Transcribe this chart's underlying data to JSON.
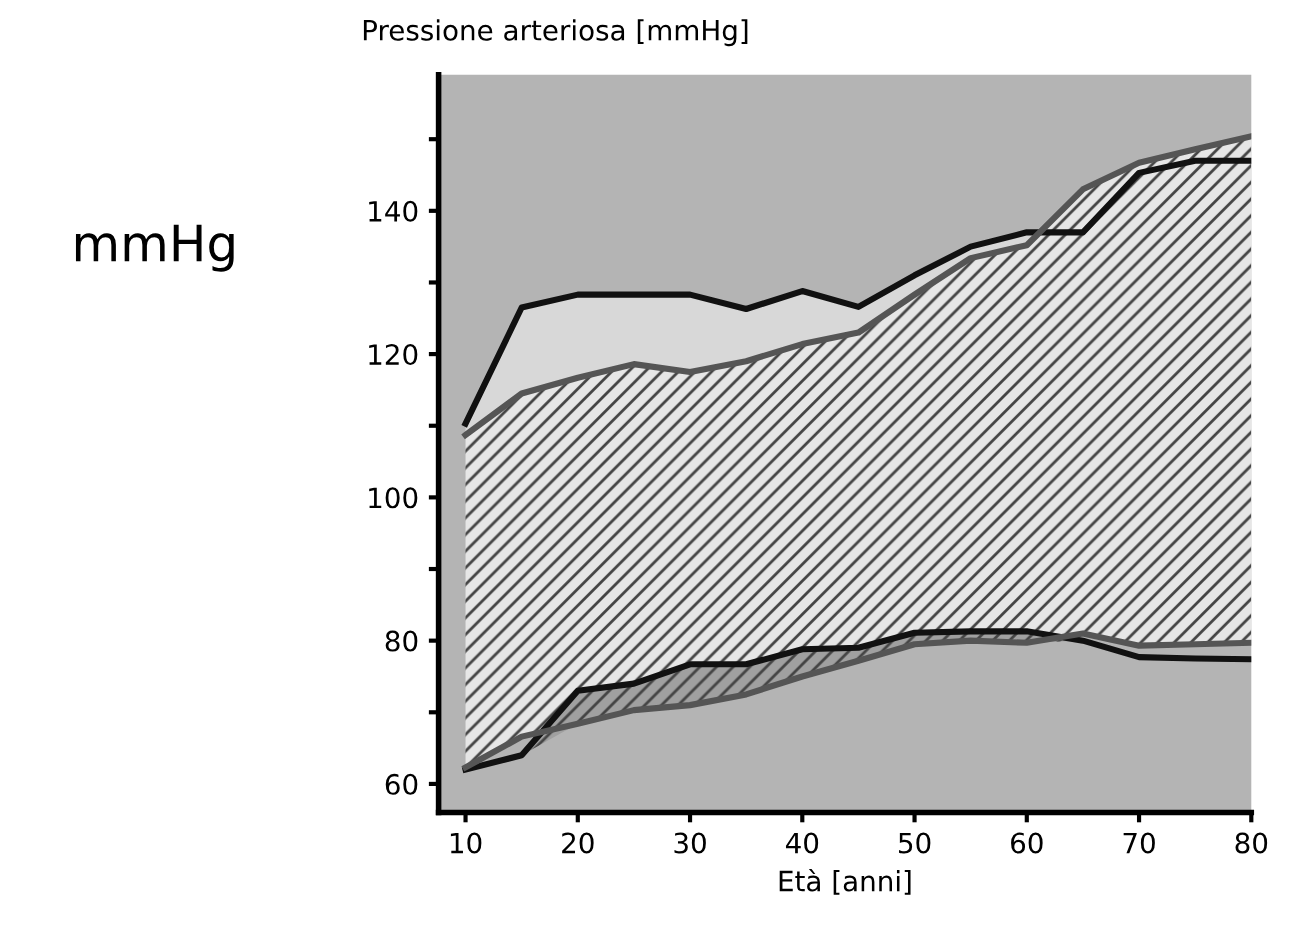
{
  "chart_data": {
    "type": "line",
    "title": "Pressione arteriosa [mmHg]",
    "xlabel": "Età [anni]",
    "annotations": [
      "mmHg"
    ],
    "x": [
      10,
      15,
      20,
      25,
      30,
      35,
      40,
      45,
      50,
      55,
      60,
      65,
      70,
      75,
      80
    ],
    "xlim": [
      7.6,
      80
    ],
    "xticks": [
      10,
      20,
      30,
      40,
      50,
      60,
      70,
      80
    ],
    "ylim": [
      56,
      159
    ],
    "yticks": [
      60,
      {
        "value": 70,
        "label": null
      },
      80,
      {
        "value": 90,
        "label": null
      },
      100,
      {
        "value": 110,
        "label": null
      },
      120,
      {
        "value": 130,
        "label": null
      },
      140,
      {
        "value": 150,
        "label": null
      }
    ],
    "grid": false,
    "legend": false,
    "marker": "none",
    "line_style": "solid",
    "series": [
      {
        "color": "#111111",
        "values": [
          110.3,
          126.5,
          128.3,
          128.3,
          128.3,
          126.3,
          128.8,
          126.6,
          131,
          135,
          137,
          137,
          145.3,
          147,
          147
        ],
        "lower": [
          108.7,
          114.5,
          116.7,
          118.6,
          117.5,
          119,
          121.4,
          123,
          128.3,
          133.4,
          135.2,
          137,
          145.3,
          147,
          147
        ],
        "upper": [
          110.3,
          126.5,
          128.3,
          128.3,
          128.3,
          126.3,
          128.8,
          126.6,
          131,
          135,
          137,
          137,
          145.3,
          147,
          147
        ]
      },
      {
        "color": "#555555",
        "values": [
          108.7,
          114.5,
          116.7,
          118.6,
          117.5,
          119,
          121.4,
          123,
          128.3,
          133.4,
          135.2,
          143,
          146.7,
          148.6,
          150.4
        ],
        "lower": [
          62.3,
          66.6,
          68.4,
          70.3,
          71,
          72.5,
          75,
          77.2,
          79.5,
          80,
          79.7,
          81,
          79.3,
          79.5,
          79.7
        ],
        "upper": [
          108.7,
          114.5,
          116.7,
          118.6,
          117.5,
          119,
          121.4,
          123,
          128.3,
          133.4,
          135.2,
          143,
          146.7,
          148.6,
          150.4
        ]
      },
      {
        "color": "#111111",
        "values": [
          62,
          64,
          73,
          74,
          76.7,
          76.7,
          78.8,
          79,
          81.1,
          81.3,
          81.3,
          80,
          77.7,
          77.5,
          77.4
        ],
        "lower": [
          62,
          64,
          68.4,
          70.3,
          71,
          72.5,
          75,
          77.2,
          79.5,
          80,
          79.7,
          80,
          77.7,
          77.5,
          77.4
        ],
        "upper": [
          62,
          64,
          73,
          74,
          76.7,
          76.7,
          78.8,
          79,
          81.1,
          81.3,
          81.3,
          80,
          77.7,
          77.5,
          77.4
        ]
      },
      {
        "color": "#555555",
        "values": [
          62.3,
          66.6,
          68.4,
          70.3,
          71,
          72.5,
          75,
          77.2,
          79.5,
          80,
          79.7,
          81,
          79.3,
          79.5,
          79.7
        ]
      }
    ]
  }
}
